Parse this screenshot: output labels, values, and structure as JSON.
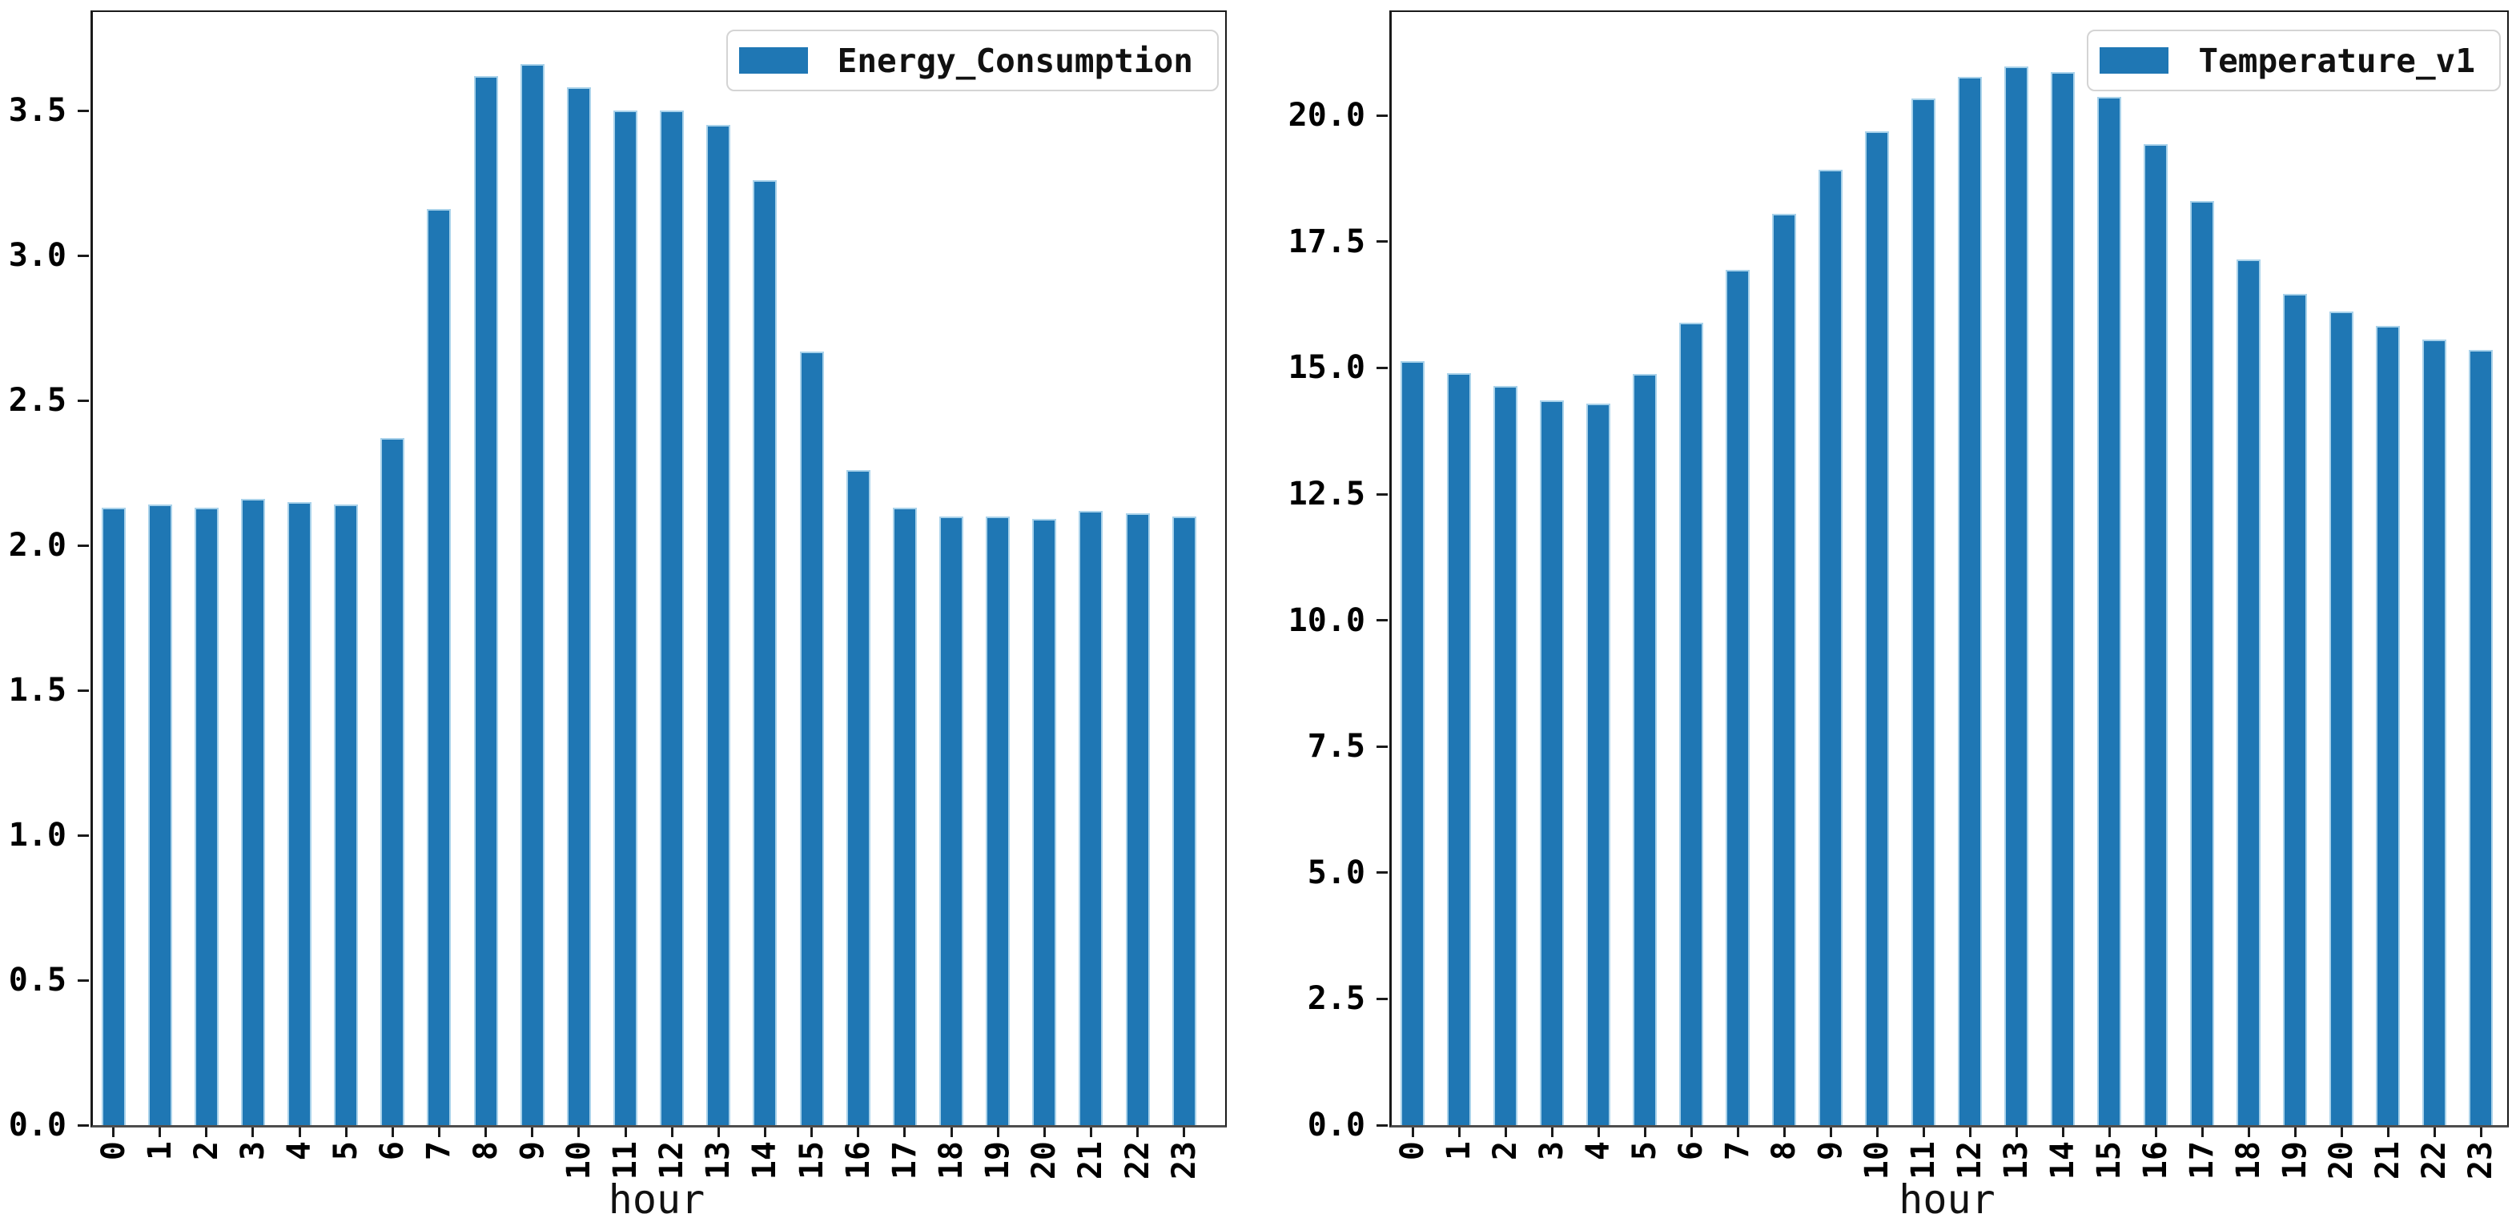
{
  "figure": {
    "background": "#ffffff",
    "bar_color": "#1f77b4",
    "bar_edge_color": "#a9d2ea",
    "spine_color": "#1a1a1a",
    "baseline_color": "#4d4d4d",
    "legend_border_color": "#d4d4d4"
  },
  "chart_data": [
    {
      "type": "bar",
      "title": "",
      "xlabel": "hour",
      "ylabel": "",
      "legend_position": "upper right",
      "grid": false,
      "ylim": [
        0,
        3.84
      ],
      "yticks": [
        0.0,
        0.5,
        1.0,
        1.5,
        2.0,
        2.5,
        3.0,
        3.5
      ],
      "ytick_decimals": 1,
      "categories": [
        "0",
        "1",
        "2",
        "3",
        "4",
        "5",
        "6",
        "7",
        "8",
        "9",
        "10",
        "11",
        "12",
        "13",
        "14",
        "15",
        "16",
        "17",
        "18",
        "19",
        "20",
        "21",
        "22",
        "23"
      ],
      "series": [
        {
          "name": "Energy_Consumption",
          "values": [
            2.13,
            2.14,
            2.13,
            2.16,
            2.15,
            2.14,
            2.37,
            3.16,
            3.62,
            3.66,
            3.58,
            3.5,
            3.5,
            3.45,
            3.26,
            2.67,
            2.26,
            2.13,
            2.1,
            2.1,
            2.09,
            2.12,
            2.11,
            2.1
          ]
        }
      ]
    },
    {
      "type": "bar",
      "title": "",
      "xlabel": "hour",
      "ylabel": "",
      "legend_position": "upper right",
      "grid": false,
      "ylim": [
        0,
        22.05
      ],
      "yticks": [
        0.0,
        2.5,
        5.0,
        7.5,
        10.0,
        12.5,
        15.0,
        17.5,
        20.0
      ],
      "ytick_decimals": 1,
      "categories": [
        "0",
        "1",
        "2",
        "3",
        "4",
        "5",
        "6",
        "7",
        "8",
        "9",
        "10",
        "11",
        "12",
        "13",
        "14",
        "15",
        "16",
        "17",
        "18",
        "19",
        "20",
        "21",
        "22",
        "23"
      ],
      "series": [
        {
          "name": "Temperature_v1",
          "values": [
            15.13,
            14.9,
            14.64,
            14.36,
            14.3,
            14.88,
            15.89,
            16.94,
            18.06,
            18.92,
            19.69,
            20.34,
            20.77,
            20.97,
            20.86,
            20.37,
            19.44,
            18.3,
            17.15,
            16.47,
            16.12,
            15.83,
            15.57,
            15.36
          ]
        }
      ]
    }
  ]
}
